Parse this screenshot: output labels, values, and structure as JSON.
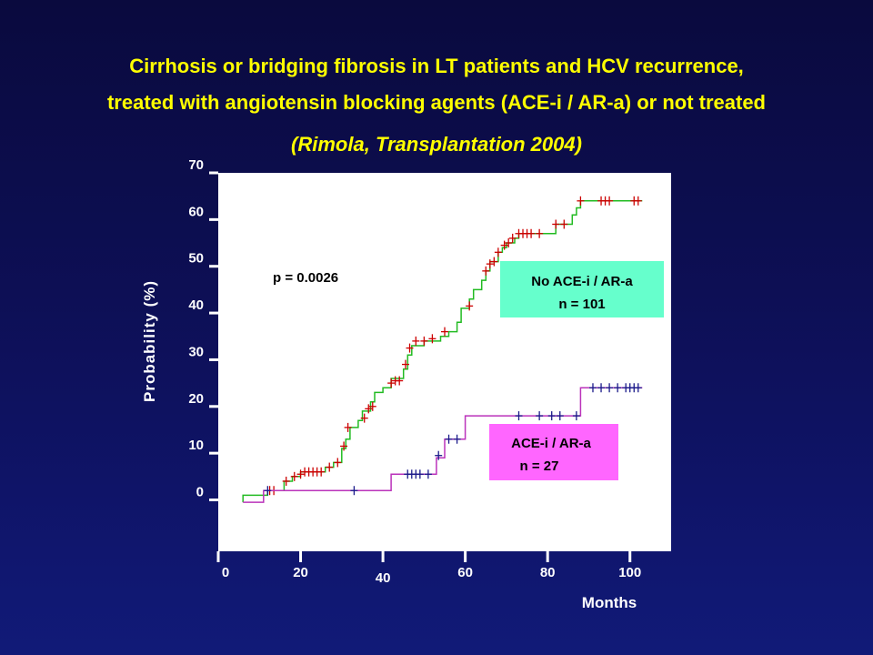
{
  "slide": {
    "title_line1": "Cirrhosis or bridging fibrosis in LT patients and HCV recurrence,",
    "title_line2": "treated with angiotensin blocking agents (ACE-i / AR-a) or not treated",
    "citation": "(Rimola, Transplantation 2004)"
  },
  "chart_data": {
    "type": "line",
    "subtype": "kaplan-meier-step",
    "xlabel": "Months",
    "ylabel": "Probability (%)",
    "x_ticks": [
      0,
      20,
      40,
      60,
      80,
      100
    ],
    "y_ticks": [
      0,
      10,
      20,
      30,
      40,
      50,
      60,
      70
    ],
    "xlim": [
      0,
      110
    ],
    "ylim": [
      -11,
      70
    ],
    "grid": false,
    "p_value": "p = 0.0026",
    "colors": {
      "background_top": "#0a0a3e",
      "title": "#ffff00",
      "plot_area": "#ffffff",
      "no_ace_line": "#22bb22",
      "no_ace_censor": "#cc0000",
      "ace_line": "#bb33bb",
      "ace_censor": "#1a1a8a",
      "no_ace_box": "#66ffcc",
      "ace_box": "#ff66ff"
    },
    "series": [
      {
        "name": "No ACE-i / AR-a",
        "n_label": "n = 101",
        "legend_position": "right",
        "steps": [
          [
            6,
            -0.5
          ],
          [
            6,
            1
          ],
          [
            12,
            1
          ],
          [
            12,
            2
          ],
          [
            16,
            2
          ],
          [
            16,
            4
          ],
          [
            18,
            4
          ],
          [
            18,
            5
          ],
          [
            20,
            5
          ],
          [
            20,
            6
          ],
          [
            26,
            6
          ],
          [
            26,
            7
          ],
          [
            28,
            7
          ],
          [
            28,
            8
          ],
          [
            30,
            8
          ],
          [
            30,
            11
          ],
          [
            31,
            11
          ],
          [
            31,
            13
          ],
          [
            32,
            13
          ],
          [
            32,
            15.5
          ],
          [
            34,
            15.5
          ],
          [
            34,
            17
          ],
          [
            35,
            17
          ],
          [
            35,
            19
          ],
          [
            37,
            19
          ],
          [
            37,
            21
          ],
          [
            38,
            21
          ],
          [
            38,
            23
          ],
          [
            40,
            23
          ],
          [
            40,
            24
          ],
          [
            42,
            24
          ],
          [
            42,
            26
          ],
          [
            45,
            26
          ],
          [
            45,
            28
          ],
          [
            46,
            28
          ],
          [
            46,
            31
          ],
          [
            47,
            31
          ],
          [
            47,
            33
          ],
          [
            50,
            33
          ],
          [
            50,
            34
          ],
          [
            54,
            34
          ],
          [
            54,
            35
          ],
          [
            56,
            35
          ],
          [
            56,
            36
          ],
          [
            58,
            36
          ],
          [
            58,
            38
          ],
          [
            59,
            38
          ],
          [
            59,
            41
          ],
          [
            61,
            41
          ],
          [
            61,
            43
          ],
          [
            62,
            43
          ],
          [
            62,
            45
          ],
          [
            64,
            45
          ],
          [
            64,
            47
          ],
          [
            65,
            47
          ],
          [
            65,
            49
          ],
          [
            66,
            49
          ],
          [
            66,
            51
          ],
          [
            68,
            51
          ],
          [
            68,
            53
          ],
          [
            69,
            53
          ],
          [
            69,
            54
          ],
          [
            70,
            54
          ],
          [
            70,
            55
          ],
          [
            72,
            55
          ],
          [
            72,
            56
          ],
          [
            73,
            56
          ],
          [
            73,
            57
          ],
          [
            82,
            57
          ],
          [
            82,
            59
          ],
          [
            86,
            59
          ],
          [
            86,
            61
          ],
          [
            87,
            61
          ],
          [
            87,
            62.5
          ],
          [
            88,
            62.5
          ],
          [
            88,
            64
          ],
          [
            103,
            64
          ]
        ],
        "censored": [
          [
            12.5,
            2
          ],
          [
            13.5,
            2
          ],
          [
            16.5,
            4
          ],
          [
            18.5,
            5
          ],
          [
            20,
            5.5
          ],
          [
            21,
            6
          ],
          [
            22,
            6
          ],
          [
            23,
            6
          ],
          [
            24,
            6
          ],
          [
            25,
            6
          ],
          [
            27,
            7
          ],
          [
            29,
            8
          ],
          [
            30.5,
            11.5
          ],
          [
            31.5,
            15.5
          ],
          [
            35.5,
            17.5
          ],
          [
            36.5,
            19.5
          ],
          [
            37.5,
            20
          ],
          [
            42,
            25
          ],
          [
            43,
            25.5
          ],
          [
            44,
            25.5
          ],
          [
            45.5,
            29
          ],
          [
            46.5,
            32.5
          ],
          [
            48,
            34
          ],
          [
            50,
            34
          ],
          [
            52,
            34.5
          ],
          [
            55,
            36
          ],
          [
            61,
            41.5
          ],
          [
            65,
            49
          ],
          [
            66,
            50.5
          ],
          [
            67,
            51
          ],
          [
            68,
            53
          ],
          [
            69.5,
            54.5
          ],
          [
            70.5,
            55
          ],
          [
            71.5,
            56
          ],
          [
            73,
            57
          ],
          [
            74,
            57
          ],
          [
            75,
            57
          ],
          [
            76,
            57
          ],
          [
            78,
            57
          ],
          [
            82,
            59
          ],
          [
            84,
            59
          ],
          [
            88,
            64
          ],
          [
            93,
            64
          ],
          [
            94,
            64
          ],
          [
            95,
            64
          ],
          [
            101,
            64
          ],
          [
            102,
            64
          ]
        ]
      },
      {
        "name": "ACE-i / AR-a",
        "n_label": "n = 27",
        "legend_position": "lower right",
        "steps": [
          [
            6,
            -0.5
          ],
          [
            11,
            -0.5
          ],
          [
            11,
            2
          ],
          [
            42,
            2
          ],
          [
            42,
            5.5
          ],
          [
            53,
            5.5
          ],
          [
            53,
            9
          ],
          [
            55,
            9
          ],
          [
            55,
            13
          ],
          [
            60,
            13
          ],
          [
            60,
            18
          ],
          [
            88,
            18
          ],
          [
            88,
            24
          ],
          [
            103,
            24
          ]
        ],
        "censored": [
          [
            12,
            2
          ],
          [
            33,
            2
          ],
          [
            46,
            5.5
          ],
          [
            47,
            5.5
          ],
          [
            48,
            5.5
          ],
          [
            49,
            5.5
          ],
          [
            51,
            5.5
          ],
          [
            53.5,
            9.5
          ],
          [
            56,
            13
          ],
          [
            58,
            13
          ],
          [
            73,
            18
          ],
          [
            78,
            18
          ],
          [
            81,
            18
          ],
          [
            83,
            18
          ],
          [
            87,
            18
          ],
          [
            91,
            24
          ],
          [
            93,
            24
          ],
          [
            95,
            24
          ],
          [
            97,
            24
          ],
          [
            99,
            24
          ],
          [
            100,
            24
          ],
          [
            101,
            24
          ],
          [
            102,
            24
          ]
        ]
      }
    ]
  }
}
